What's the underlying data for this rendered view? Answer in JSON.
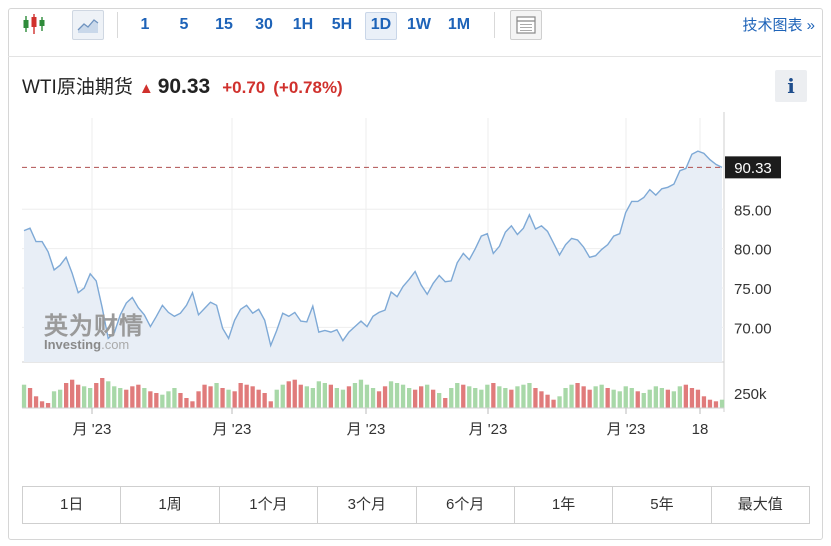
{
  "toolbar": {
    "intervals": [
      "1",
      "5",
      "15",
      "30",
      "1H",
      "5H",
      "1D",
      "1W",
      "1M"
    ],
    "active_interval": "1D",
    "tech_link": "技术图表 »"
  },
  "instrument": {
    "name": "WTI原油期货",
    "price": "90.33",
    "change": "+0.70",
    "change_pct": "(+0.78%)",
    "direction": "up"
  },
  "info_button": "i",
  "watermark": {
    "cn": "英为财情",
    "en_main": "Investing",
    "en_suffix": ".com"
  },
  "range_buttons": [
    "1日",
    "1周",
    "1个月",
    "3个月",
    "6个月",
    "1年",
    "5年",
    "最大值"
  ],
  "colors": {
    "accent": "#1e63b8",
    "up": "#d0312d",
    "line": "#7ea9d6",
    "area": "#e8eef6",
    "vol_up": "#a8d8a8",
    "vol_down": "#e07b7b"
  },
  "chart_data": {
    "type": "area",
    "price_axis": {
      "ticks": [
        70,
        75,
        80,
        85
      ],
      "tick_labels": [
        "70.00",
        "75.00",
        "80.00",
        "85.00"
      ],
      "ylim": [
        65.6,
        96.6
      ]
    },
    "last_price_label": "90.33",
    "reference_line": 90.33,
    "volume_label": "250k",
    "x_tick_labels": [
      "月 '23",
      "月 '23",
      "月 '23",
      "月 '23",
      "月 '23",
      "18"
    ],
    "series": [
      {
        "values": [
          82.3,
          82.6,
          80.9,
          80.9,
          79.6,
          77.3,
          77.9,
          78.9,
          76.9,
          74.4,
          75.0,
          76.8,
          75.9,
          72.5,
          68.6,
          69.3,
          71.6,
          73.1,
          73.8,
          72.5,
          71.6,
          70.1,
          71.4,
          72.8,
          71.9,
          71.4,
          71.8,
          72.8,
          74.4,
          71.6,
          72.4,
          73.2,
          72.8,
          69.9,
          68.6,
          70.9,
          72.3,
          72.8,
          71.8,
          72.3,
          70.9,
          67.7,
          69.6,
          71.8,
          71.4,
          71.9,
          70.8,
          70.7,
          72.7,
          69.4,
          69.6,
          69.4,
          69.7,
          68.3,
          69.4,
          70.1,
          70.8,
          70.1,
          71.4,
          71.9,
          72.2,
          74.5,
          73.9,
          75.2,
          76.1,
          77.1,
          75.4,
          74.2,
          75.6,
          76.6,
          75.8,
          75.9,
          78.2,
          79.4,
          78.6,
          80.0,
          81.6,
          81.9,
          79.4,
          80.3,
          82.1,
          82.9,
          81.8,
          82.6,
          84.3,
          82.5,
          82.9,
          82.2,
          80.7,
          79.2,
          80.5,
          81.3,
          81.1,
          80.2,
          78.9,
          79.1,
          79.9,
          80.5,
          81.6,
          81.9,
          84.6,
          86.0,
          86.0,
          86.5,
          87.5,
          86.8,
          87.6,
          87.8,
          88.2,
          89.9,
          90.2,
          92.0,
          92.4,
          92.1,
          91.3,
          90.7,
          90.33
        ]
      }
    ],
    "volume": {
      "values": [
        28,
        24,
        14,
        8,
        6,
        20,
        22,
        30,
        34,
        28,
        26,
        24,
        30,
        36,
        32,
        26,
        24,
        22,
        26,
        28,
        24,
        20,
        18,
        16,
        20,
        24,
        18,
        12,
        8,
        20,
        28,
        26,
        30,
        24,
        22,
        20,
        30,
        28,
        26,
        22,
        18,
        8,
        22,
        28,
        32,
        34,
        28,
        26,
        24,
        32,
        30,
        28,
        24,
        22,
        26,
        30,
        34,
        28,
        24,
        20,
        26,
        32,
        30,
        28,
        24,
        22,
        26,
        28,
        22,
        18,
        12,
        24,
        30,
        28,
        26,
        24,
        22,
        28,
        30,
        26,
        24,
        22,
        26,
        28,
        30,
        24,
        20,
        16,
        10,
        14,
        24,
        28,
        30,
        26,
        22,
        26,
        28,
        24,
        22,
        20,
        26,
        24,
        20,
        18,
        22,
        26,
        24,
        22,
        20,
        26,
        28,
        24,
        22,
        14,
        10,
        8,
        10
      ],
      "up": [
        1,
        0,
        0,
        0,
        0,
        1,
        1,
        0,
        0,
        0,
        1,
        1,
        0,
        0,
        1,
        1,
        1,
        0,
        0,
        0,
        1,
        0,
        0,
        1,
        1,
        1,
        0,
        0,
        0,
        0,
        0,
        0,
        1,
        0,
        1,
        0,
        0,
        0,
        0,
        0,
        0,
        0,
        1,
        1,
        0,
        0,
        0,
        1,
        1,
        1,
        1,
        0,
        1,
        1,
        0,
        1,
        1,
        1,
        1,
        0,
        0,
        1,
        1,
        1,
        1,
        0,
        0,
        1,
        0,
        1,
        0,
        1,
        1,
        0,
        1,
        1,
        1,
        1,
        0,
        1,
        1,
        0,
        1,
        1,
        1,
        0,
        0,
        0,
        0,
        1,
        1,
        1,
        0,
        0,
        0,
        1,
        1,
        0,
        1,
        1,
        1,
        1,
        0,
        1,
        1,
        1,
        1,
        0,
        1,
        1,
        0,
        0,
        0,
        0,
        0,
        0,
        1
      ]
    }
  }
}
